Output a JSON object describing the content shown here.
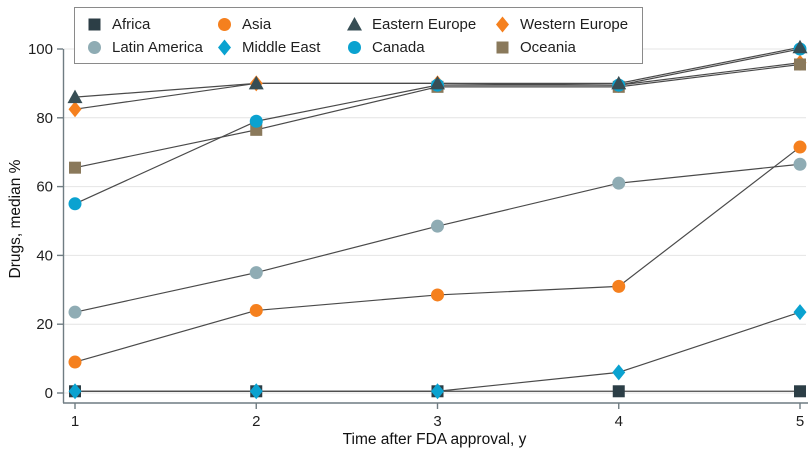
{
  "chart_data": {
    "type": "line",
    "title": "",
    "xlabel": "Time after FDA approval, y",
    "ylabel": "Drugs, median %",
    "x": [
      1,
      2,
      3,
      4,
      5
    ],
    "xlim": [
      1,
      5
    ],
    "ylim": [
      0,
      100
    ],
    "yticks": [
      0,
      20,
      40,
      60,
      80,
      100
    ],
    "grid": "horizontal",
    "legend_position": "top",
    "line_color": "#4a4a4a",
    "axis_color": "#6f7c82",
    "grid_color": "#e4e4e4",
    "text_color": "#1f1f1f",
    "series": [
      {
        "name": "Africa",
        "marker": "square",
        "color": "#2C3E46",
        "values": [
          0.5,
          0.5,
          0.5,
          0.5,
          0.5
        ],
        "z": 1
      },
      {
        "name": "Asia",
        "marker": "circle",
        "color": "#F5801E",
        "values": [
          9,
          24,
          28.5,
          31,
          71.5
        ],
        "z": 6
      },
      {
        "name": "Eastern Europe",
        "marker": "triangle",
        "color": "#374E55",
        "values": [
          86,
          90,
          90,
          90,
          100.5
        ],
        "z": 8
      },
      {
        "name": "Western Europe",
        "marker": "diamond",
        "color": "#F5801E",
        "values": [
          82.5,
          90,
          90,
          89.5,
          96
        ],
        "z": 2
      },
      {
        "name": "Latin America",
        "marker": "circle",
        "color": "#8FACB4",
        "values": [
          23.5,
          35,
          48.5,
          61,
          66.5
        ],
        "z": 5
      },
      {
        "name": "Middle East",
        "marker": "diamond",
        "color": "#0AA2D0",
        "values": [
          0.5,
          0.5,
          0.5,
          6,
          23.5
        ],
        "z": 7
      },
      {
        "name": "Canada",
        "marker": "circle",
        "color": "#0AA2D0",
        "values": [
          55,
          79,
          89.5,
          89.5,
          100
        ],
        "z": 4
      },
      {
        "name": "Oceania",
        "marker": "square",
        "color": "#8A795B",
        "values": [
          65.5,
          76.5,
          89,
          89,
          95.5
        ],
        "z": 3
      }
    ]
  }
}
